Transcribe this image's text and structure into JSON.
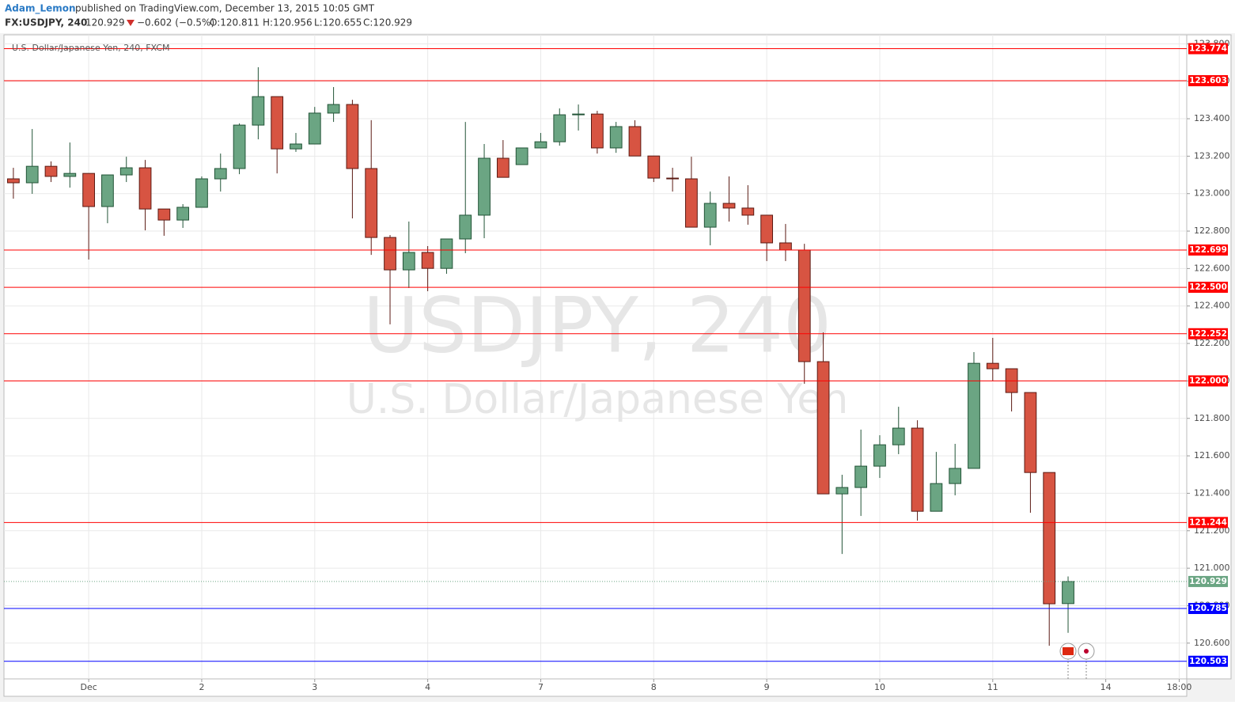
{
  "header": {
    "author": "Adam_Lemon",
    "published": "published on TradingView.com, December 13, 2015 10:05 GMT",
    "symbol": "FX:USDJPY, 240",
    "price": "120.929",
    "change": "−0.602 (−0.5%)",
    "ohlc": [
      "O:120.811",
      "H:120.956",
      "L:120.655",
      "C:120.929"
    ]
  },
  "chart_data": {
    "type": "candlestick",
    "title": "U.S. Dollar/Japanese Yen, 240, FXCM",
    "watermark": [
      "USDJPY, 240",
      "U.S. Dollar/Japanese Yen"
    ],
    "x": [
      0,
      1,
      2,
      3,
      4,
      5,
      6,
      7,
      8,
      9,
      10,
      11,
      12,
      13,
      14,
      15,
      16,
      17,
      18,
      19,
      20,
      21,
      22,
      23,
      24,
      25,
      26,
      27,
      28,
      29,
      30,
      31,
      32,
      33,
      34,
      35,
      36,
      37,
      38,
      39,
      40,
      41,
      42,
      43,
      44,
      45,
      46,
      47,
      48,
      49,
      50,
      51,
      52,
      53,
      54,
      55,
      56
    ],
    "open": [
      123.079,
      123.058,
      123.146,
      123.092,
      123.108,
      122.931,
      123.1,
      123.138,
      122.918,
      122.859,
      122.927,
      123.079,
      123.134,
      123.366,
      123.518,
      123.239,
      123.265,
      123.43,
      123.476,
      123.134,
      122.766,
      122.593,
      122.686,
      122.601,
      122.758,
      122.885,
      123.189,
      123.155,
      123.244,
      123.277,
      123.421,
      123.425,
      123.244,
      123.358,
      123.201,
      123.083,
      123.079,
      122.821,
      122.948,
      122.923,
      122.885,
      122.737,
      122.699,
      122.103,
      121.397,
      121.431,
      121.545,
      121.659,
      121.748,
      121.304,
      121.452,
      121.533,
      122.094,
      122.065,
      121.938,
      121.511,
      120.811
    ],
    "high": [
      123.138,
      123.345,
      123.172,
      123.273,
      123.108,
      123.1,
      123.197,
      123.18,
      122.918,
      122.944,
      123.092,
      123.214,
      123.375,
      123.675,
      123.518,
      123.324,
      123.463,
      123.569,
      123.501,
      123.392,
      122.779,
      122.851,
      122.72,
      122.758,
      123.383,
      123.265,
      123.286,
      123.244,
      123.324,
      123.455,
      123.476,
      123.442,
      123.383,
      123.392,
      123.201,
      123.138,
      123.197,
      123.011,
      123.092,
      123.045,
      122.885,
      122.838,
      122.732,
      122.259,
      121.499,
      121.74,
      121.71,
      121.862,
      121.79,
      121.621,
      121.664,
      122.154,
      122.23,
      122.065,
      121.938,
      121.511,
      120.956
    ],
    "low": [
      122.973,
      122.999,
      123.062,
      123.032,
      122.648,
      122.842,
      123.062,
      122.804,
      122.775,
      122.817,
      122.927,
      123.011,
      123.104,
      123.29,
      123.108,
      123.223,
      123.265,
      123.383,
      122.868,
      122.673,
      122.302,
      122.496,
      122.479,
      122.572,
      122.682,
      122.762,
      123.087,
      123.155,
      123.244,
      123.256,
      123.337,
      123.214,
      123.218,
      123.201,
      123.062,
      123.011,
      122.821,
      122.724,
      122.851,
      122.834,
      122.64,
      122.64,
      121.985,
      121.397,
      121.076,
      121.279,
      121.482,
      121.609,
      121.254,
      121.304,
      121.389,
      121.533,
      122.001,
      121.837,
      121.296,
      120.586,
      120.655
    ],
    "close": [
      123.058,
      123.146,
      123.092,
      123.108,
      122.931,
      123.1,
      123.138,
      122.918,
      122.859,
      122.927,
      123.079,
      123.134,
      123.366,
      123.518,
      123.239,
      123.265,
      123.43,
      123.476,
      123.134,
      122.766,
      122.593,
      122.686,
      122.601,
      122.758,
      122.885,
      123.189,
      123.087,
      123.244,
      123.277,
      123.421,
      123.425,
      123.244,
      123.358,
      123.201,
      123.083,
      123.079,
      122.821,
      122.948,
      122.923,
      122.885,
      122.737,
      122.699,
      122.103,
      121.397,
      121.431,
      121.545,
      121.659,
      121.748,
      121.304,
      121.452,
      121.533,
      122.094,
      122.065,
      121.938,
      121.511,
      120.81,
      120.929
    ],
    "up_color": "#6ba583",
    "down_color": "#d75442",
    "xlim": [
      -0.5,
      62.3
    ],
    "xticks": [
      {
        "value": 4,
        "label": "Dec"
      },
      {
        "value": 10,
        "label": "2"
      },
      {
        "value": 16,
        "label": "3"
      },
      {
        "value": 22,
        "label": "4"
      },
      {
        "value": 28,
        "label": "7"
      },
      {
        "value": 34,
        "label": "8"
      },
      {
        "value": 40,
        "label": "9"
      },
      {
        "value": 46,
        "label": "10"
      },
      {
        "value": 52,
        "label": "11"
      },
      {
        "value": 58,
        "label": "14"
      },
      {
        "value": 61.9,
        "label": "18:00"
      }
    ],
    "ylim": [
      120.409,
      123.848
    ],
    "yticks": [
      {
        "value": 120.6,
        "label": "120.600"
      },
      {
        "value": 120.8,
        "label": "120.800"
      },
      {
        "value": 121,
        "label": "121.000"
      },
      {
        "value": 121.2,
        "label": "121.200"
      },
      {
        "value": 121.4,
        "label": "121.400"
      },
      {
        "value": 121.6,
        "label": "121.600"
      },
      {
        "value": 121.8,
        "label": "121.800"
      },
      {
        "value": 122,
        "label": "122.000"
      },
      {
        "value": 122.2,
        "label": "122.200"
      },
      {
        "value": 122.4,
        "label": "122.400"
      },
      {
        "value": 122.6,
        "label": "122.600"
      },
      {
        "value": 122.8,
        "label": "122.800"
      },
      {
        "value": 123,
        "label": "123.000"
      },
      {
        "value": 123.2,
        "label": "123.200"
      },
      {
        "value": 123.4,
        "label": "123.400"
      },
      {
        "value": 123.6,
        "label": "123.600"
      },
      {
        "value": 123.8,
        "label": "123.800"
      }
    ],
    "grid": true,
    "levels": [
      {
        "value": 123.774,
        "label": "123.774",
        "color": "#ff0000"
      },
      {
        "value": 123.603,
        "label": "123.603",
        "color": "#ff0000"
      },
      {
        "value": 122.699,
        "label": "122.699",
        "color": "#ff0000"
      },
      {
        "value": 122.5,
        "label": "122.500",
        "color": "#ff0000"
      },
      {
        "value": 122.252,
        "label": "122.252",
        "color": "#ff0000"
      },
      {
        "value": 122,
        "label": "122.000",
        "color": "#ff0000"
      },
      {
        "value": 121.244,
        "label": "121.244",
        "color": "#ff0000"
      },
      {
        "value": 120.785,
        "label": "120.785",
        "color": "#0000ff"
      },
      {
        "value": 120.503,
        "label": "120.503",
        "color": "#0000ff"
      }
    ],
    "last_price": {
      "value": 120.929,
      "color": "#6ba583"
    }
  }
}
